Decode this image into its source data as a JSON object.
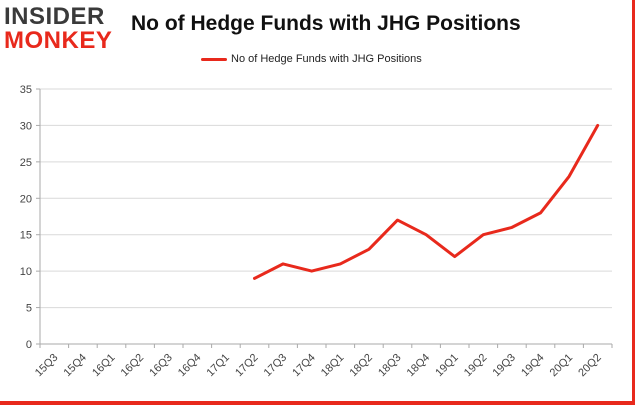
{
  "logo": {
    "line1": "INSIDER",
    "line2": "MONKEY"
  },
  "chart_data": {
    "type": "line",
    "title": "No of Hedge Funds with JHG Positions",
    "categories": [
      "15Q3",
      "15Q4",
      "16Q1",
      "16Q2",
      "16Q3",
      "16Q4",
      "17Q1",
      "17Q2",
      "17Q3",
      "17Q4",
      "18Q1",
      "18Q2",
      "18Q3",
      "18Q4",
      "19Q1",
      "19Q2",
      "19Q3",
      "19Q4",
      "20Q1",
      "20Q2"
    ],
    "series": [
      {
        "name": "No of Hedge Funds with JHG Positions",
        "values": [
          null,
          null,
          null,
          null,
          null,
          null,
          null,
          9,
          11,
          10,
          11,
          13,
          17,
          15,
          12,
          15,
          16,
          18,
          23,
          30
        ]
      }
    ],
    "ylim": [
      0,
      35
    ],
    "yticks": [
      0,
      5,
      10,
      15,
      20,
      25,
      30,
      35
    ],
    "grid": true,
    "legend_position": "top-center",
    "colors": {
      "series": "#e8291c",
      "grid": "#d9d9d9"
    }
  }
}
